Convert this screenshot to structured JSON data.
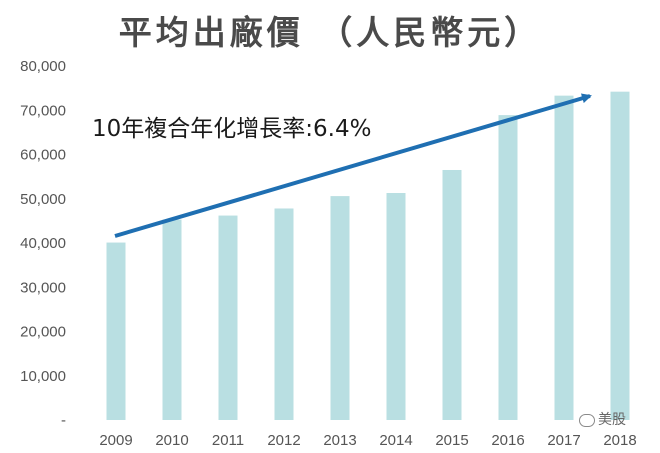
{
  "chart_data": {
    "type": "bar",
    "title": "平均出廠價 （人民幣元）",
    "categories": [
      "2009",
      "2010",
      "2011",
      "2012",
      "2013",
      "2014",
      "2015",
      "2016",
      "2017",
      "2018"
    ],
    "values": [
      40100,
      45300,
      46200,
      47800,
      50600,
      51300,
      56500,
      68900,
      73300,
      74200
    ],
    "ylim": [
      0,
      80000
    ],
    "yticks": [
      0,
      10000,
      20000,
      30000,
      40000,
      50000,
      60000,
      70000,
      80000
    ],
    "ytick_labels": [
      "-",
      "10,000",
      "20,000",
      "30,000",
      "40,000",
      "50,000",
      "60,000",
      "70,000",
      "80,000"
    ],
    "xlabel": "",
    "ylabel": "",
    "grid": false,
    "annotation": "10年複合年化增長率:6.4%",
    "bar_color": "#b9dfe2",
    "arrow_color": "#1f6fb2"
  },
  "watermark": {
    "text": "美股",
    "icon": "wechat-icon"
  }
}
